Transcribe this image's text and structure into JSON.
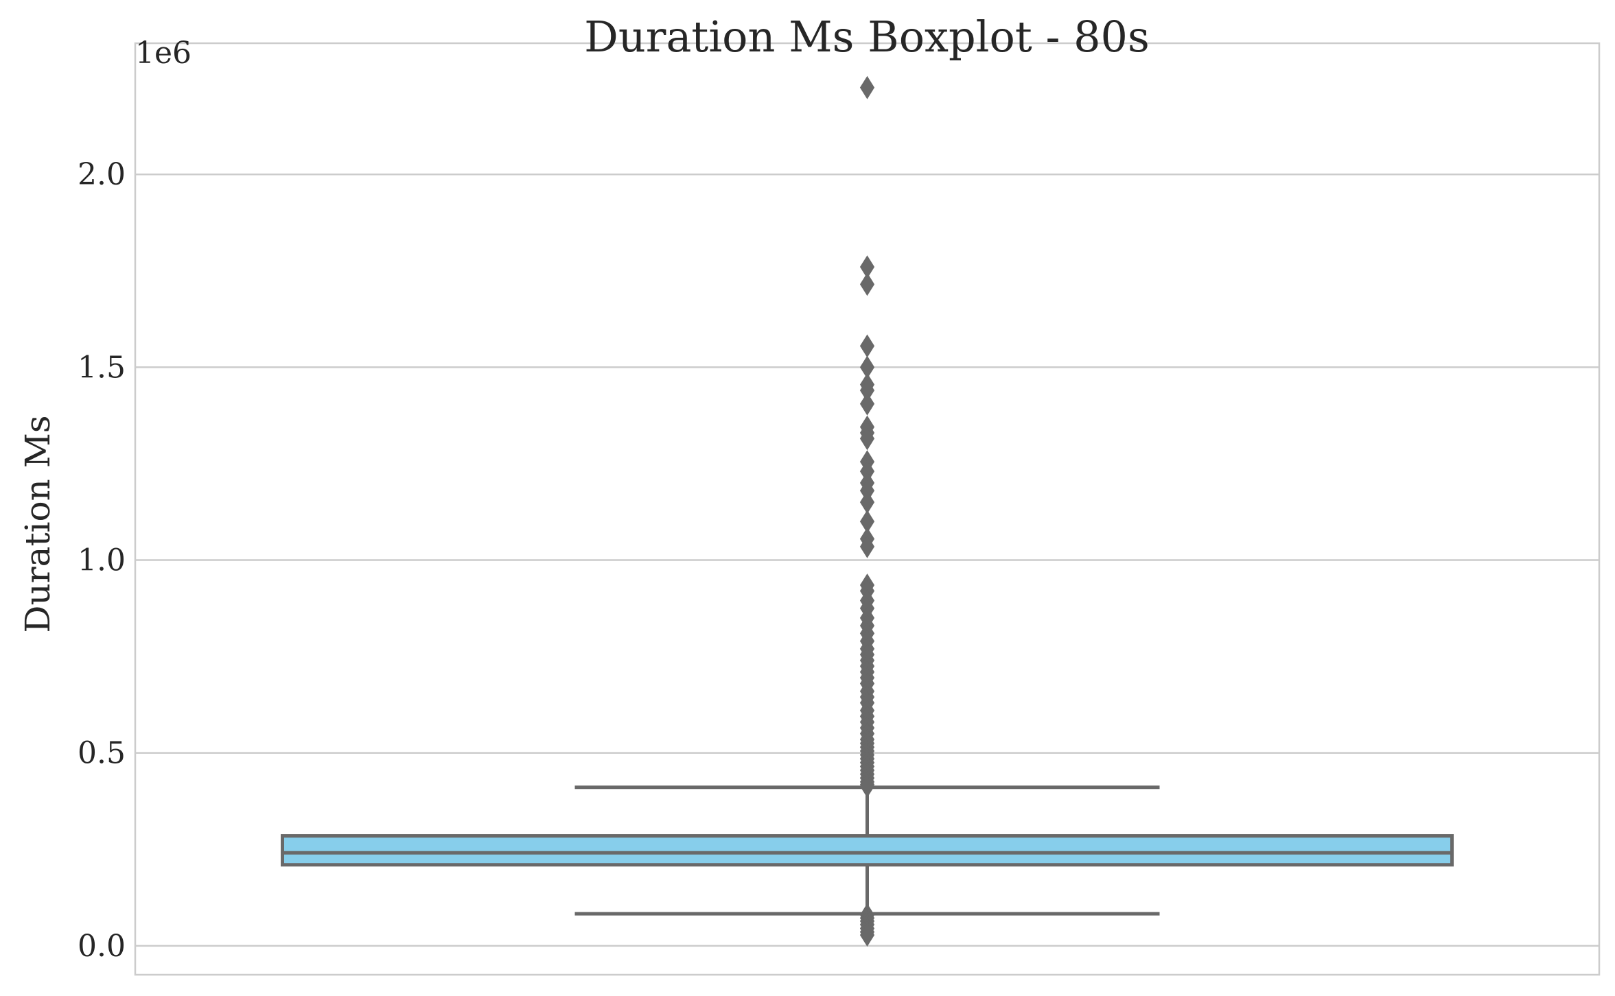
{
  "chart_data": {
    "type": "box",
    "title": "Duration Ms Boxplot - 80s",
    "xlabel": "",
    "ylabel": "Duration Ms",
    "y_scale_label": "1e6",
    "ylim": [
      -75000,
      2340000
    ],
    "yticks": [
      0,
      500000,
      1000000,
      1500000,
      2000000
    ],
    "ytick_labels": [
      "0.0",
      "0.5",
      "1.0",
      "1.5",
      "2.0"
    ],
    "grid": "horizontal",
    "box": {
      "q1": 210000,
      "median": 241000,
      "q3": 285000,
      "whisker_low": 83000,
      "whisker_high": 411000
    },
    "outliers": [
      2225000,
      1760000,
      1715000,
      1555000,
      1500000,
      1455000,
      1440000,
      1405000,
      1345000,
      1330000,
      1315000,
      1255000,
      1230000,
      1200000,
      1180000,
      1150000,
      1100000,
      1055000,
      1035000,
      935000,
      920000,
      895000,
      875000,
      850000,
      830000,
      810000,
      790000,
      770000,
      755000,
      740000,
      725000,
      710000,
      695000,
      680000,
      660000,
      645000,
      630000,
      610000,
      595000,
      580000,
      565000,
      550000,
      535000,
      525000,
      515000,
      505000,
      495000,
      485000,
      475000,
      465000,
      455000,
      445000,
      435000,
      425000,
      418000,
      414000,
      80000,
      72000,
      64000,
      55000,
      45000,
      36000,
      28000
    ],
    "colors": {
      "box_fill": "#87ceeb",
      "line": "#696969",
      "grid": "#cccccc",
      "spine": "#cccccc"
    }
  }
}
